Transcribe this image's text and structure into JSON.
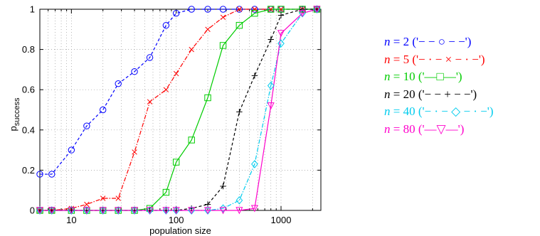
{
  "chart_data": {
    "type": "line",
    "xscale": "log",
    "xlim": [
      5,
      2400
    ],
    "ylim": [
      0,
      1
    ],
    "xlabel": "population size",
    "ylabel": "p",
    "ylabel_subscript": "success",
    "grid": true,
    "legend_placement": "right, outside",
    "x_ticks": [
      {
        "value": 10,
        "label": "10"
      },
      {
        "value": 100,
        "label": "100"
      },
      {
        "value": 1000,
        "label": "1000"
      }
    ],
    "y_ticks": [
      {
        "value": 0,
        "label": "0"
      },
      {
        "value": 0.2,
        "label": "0.2"
      },
      {
        "value": 0.4,
        "label": "0.4"
      },
      {
        "value": 0.6,
        "label": "0.6"
      },
      {
        "value": 0.8,
        "label": "0.8"
      },
      {
        "value": 1,
        "label": "1"
      }
    ],
    "series": [
      {
        "name": "n = 2 ('− − ○ − −')",
        "label_var": "n",
        "label_rest": " = 2 ('− − ○ − −')",
        "color": "#0000ff",
        "dash": "4,3",
        "marker": "circle",
        "x": [
          5,
          6.5,
          10,
          14,
          20,
          28,
          40,
          56,
          80,
          100,
          140,
          200,
          280,
          400,
          560,
          800,
          1000,
          1600,
          2200
        ],
        "y": [
          0.18,
          0.18,
          0.3,
          0.42,
          0.5,
          0.63,
          0.69,
          0.76,
          0.92,
          0.98,
          1,
          1,
          1,
          1,
          1,
          1,
          1,
          1,
          1
        ]
      },
      {
        "name": "n = 5 ('− · − × − · −')",
        "label_var": "n",
        "label_rest": " = 5 ('− · − × − · −')",
        "color": "#ff0000",
        "dash": "6,2,1.5,2",
        "marker": "x",
        "x": [
          5,
          6.5,
          10,
          14,
          20,
          28,
          40,
          56,
          80,
          100,
          140,
          200,
          280,
          400,
          560,
          800,
          1000,
          1600,
          2200
        ],
        "y": [
          0,
          0,
          0.01,
          0.03,
          0.06,
          0.06,
          0.29,
          0.54,
          0.6,
          0.68,
          0.8,
          0.9,
          0.96,
          1,
          1,
          1,
          1,
          1,
          1
        ]
      },
      {
        "name": "n = 10 ('—□—')",
        "label_var": "n",
        "label_rest": " = 10 ('—□—')",
        "color": "#00cc00",
        "dash": "",
        "marker": "square",
        "x": [
          5,
          6.5,
          10,
          14,
          20,
          28,
          40,
          56,
          80,
          100,
          140,
          200,
          280,
          400,
          560,
          800,
          1000,
          1600,
          2200
        ],
        "y": [
          0,
          0,
          0,
          0,
          0,
          0,
          0,
          0.01,
          0.09,
          0.24,
          0.35,
          0.56,
          0.82,
          0.92,
          0.98,
          1,
          1,
          1,
          1
        ]
      },
      {
        "name": "n = 20 ('− − + − −')",
        "label_var": "n",
        "label_rest": " = 20 ('− − + − −')",
        "color": "#000000",
        "dash": "4,3",
        "marker": "plus",
        "x": [
          5,
          6.5,
          10,
          14,
          20,
          28,
          40,
          56,
          80,
          100,
          140,
          200,
          280,
          400,
          560,
          800,
          1000,
          1600,
          2200
        ],
        "y": [
          0,
          0,
          0,
          0,
          0,
          0,
          0,
          0,
          0,
          0,
          0.01,
          0.03,
          0.12,
          0.49,
          0.67,
          0.85,
          0.97,
          1,
          1
        ]
      },
      {
        "name": "n = 40 ('− · − ◇ − · −')",
        "label_var": "n",
        "label_rest": " = 40 ('− · − ◇ − · −')",
        "color": "#00ccee",
        "dash": "6,2,1.5,2",
        "marker": "diamond",
        "x": [
          5,
          6.5,
          10,
          14,
          20,
          28,
          40,
          56,
          80,
          100,
          140,
          200,
          280,
          400,
          560,
          800,
          1000,
          1600,
          2200
        ],
        "y": [
          0,
          0,
          0,
          0,
          0,
          0,
          0,
          0,
          0,
          0,
          0,
          0,
          0.01,
          0.05,
          0.23,
          0.62,
          0.83,
          0.98,
          1
        ]
      },
      {
        "name": "n = 80 ('—▽—')",
        "label_var": "n",
        "label_rest": " = 80 ('—▽—')",
        "color": "#ff00cc",
        "dash": "",
        "marker": "triangle-down",
        "x": [
          5,
          6.5,
          10,
          14,
          20,
          28,
          40,
          56,
          80,
          100,
          140,
          200,
          280,
          400,
          560,
          800,
          1000,
          1600,
          2200
        ],
        "y": [
          0,
          0,
          0,
          0,
          0,
          0,
          0,
          0,
          0,
          0,
          0,
          0,
          0,
          0,
          0.01,
          0.52,
          0.88,
          0.98,
          1
        ]
      }
    ]
  }
}
